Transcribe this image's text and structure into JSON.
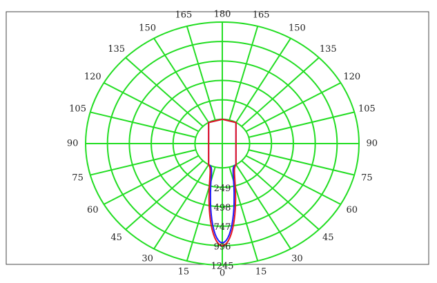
{
  "chart_data": {
    "type": "polar",
    "title": "",
    "angle_unit": "deg",
    "angle_ticks": [
      {
        "angle": 0,
        "label": "0"
      },
      {
        "angle": 15,
        "label": "15"
      },
      {
        "angle": 30,
        "label": "30"
      },
      {
        "angle": 45,
        "label": "45"
      },
      {
        "angle": 60,
        "label": "60"
      },
      {
        "angle": 75,
        "label": "75"
      },
      {
        "angle": 90,
        "label": "90"
      },
      {
        "angle": 105,
        "label": "105"
      },
      {
        "angle": 120,
        "label": "120"
      },
      {
        "angle": 135,
        "label": "135"
      },
      {
        "angle": 150,
        "label": "150"
      },
      {
        "angle": 165,
        "label": "165"
      },
      {
        "angle": 180,
        "label": "180"
      },
      {
        "angle": -165,
        "label": "165"
      },
      {
        "angle": -150,
        "label": "150"
      },
      {
        "angle": -135,
        "label": "135"
      },
      {
        "angle": -120,
        "label": "120"
      },
      {
        "angle": -105,
        "label": "105"
      },
      {
        "angle": -90,
        "label": "90"
      },
      {
        "angle": -75,
        "label": "75"
      },
      {
        "angle": -60,
        "label": "60"
      },
      {
        "angle": -45,
        "label": "45"
      },
      {
        "angle": -30,
        "label": "30"
      },
      {
        "angle": -15,
        "label": "15"
      }
    ],
    "radial_ticks": [
      {
        "value": 249,
        "label": "249"
      },
      {
        "value": 498,
        "label": "498"
      },
      {
        "value": 747,
        "label": "747"
      },
      {
        "value": 996,
        "label": "996"
      },
      {
        "value": 1245,
        "label": "1245"
      }
    ],
    "r_range": [
      0,
      1245
    ],
    "grid": true,
    "legend": "none",
    "series": [
      {
        "color": "#1a1aff",
        "points": [
          {
            "angle": 0,
            "r": 960
          },
          {
            "angle": 1,
            "r": 953
          },
          {
            "angle": 2,
            "r": 932
          },
          {
            "angle": 3,
            "r": 898
          },
          {
            "angle": 4,
            "r": 853
          },
          {
            "angle": 5,
            "r": 798
          },
          {
            "angle": 6,
            "r": 736
          },
          {
            "angle": 7,
            "r": 669
          },
          {
            "angle": 8,
            "r": 600
          },
          {
            "angle": 9,
            "r": 530
          },
          {
            "angle": 10,
            "r": 462
          },
          {
            "angle": 12,
            "r": 336
          },
          {
            "angle": 14,
            "r": 231
          },
          {
            "angle": 16,
            "r": 148
          },
          {
            "angle": 18,
            "r": 88
          },
          {
            "angle": 20,
            "r": 48
          },
          {
            "angle": 22,
            "r": 24
          },
          {
            "angle": 24,
            "r": 11
          },
          {
            "angle": 26,
            "r": 5
          },
          {
            "angle": 28,
            "r": 2
          },
          {
            "angle": 30,
            "r": 0
          },
          {
            "angle": 150,
            "r": 0
          },
          {
            "angle": 180,
            "r": 0
          },
          {
            "angle": -150,
            "r": 0
          },
          {
            "angle": -30,
            "r": 0
          },
          {
            "angle": -28,
            "r": 2
          },
          {
            "angle": -26,
            "r": 5
          },
          {
            "angle": -24,
            "r": 11
          },
          {
            "angle": -22,
            "r": 24
          },
          {
            "angle": -20,
            "r": 48
          },
          {
            "angle": -18,
            "r": 88
          },
          {
            "angle": -16,
            "r": 148
          },
          {
            "angle": -14,
            "r": 231
          },
          {
            "angle": -12,
            "r": 336
          },
          {
            "angle": -10,
            "r": 462
          },
          {
            "angle": -9,
            "r": 530
          },
          {
            "angle": -8,
            "r": 600
          },
          {
            "angle": -7,
            "r": 669
          },
          {
            "angle": -6,
            "r": 736
          },
          {
            "angle": -5,
            "r": 798
          },
          {
            "angle": -4,
            "r": 853
          },
          {
            "angle": -3,
            "r": 898
          },
          {
            "angle": -2,
            "r": 932
          },
          {
            "angle": -1,
            "r": 953
          },
          {
            "angle": 0,
            "r": 960
          }
        ]
      },
      {
        "color": "#e8141e",
        "points": [
          {
            "angle": 0,
            "r": 996
          },
          {
            "angle": 1,
            "r": 990
          },
          {
            "angle": 2,
            "r": 971
          },
          {
            "angle": 3,
            "r": 941
          },
          {
            "angle": 4,
            "r": 901
          },
          {
            "angle": 5,
            "r": 852
          },
          {
            "angle": 6,
            "r": 796
          },
          {
            "angle": 7,
            "r": 735
          },
          {
            "angle": 8,
            "r": 671
          },
          {
            "angle": 9,
            "r": 605
          },
          {
            "angle": 10,
            "r": 540
          },
          {
            "angle": 12,
            "r": 416
          },
          {
            "angle": 14,
            "r": 307
          },
          {
            "angle": 16,
            "r": 217
          },
          {
            "angle": 18,
            "r": 146
          },
          {
            "angle": 20,
            "r": 93
          },
          {
            "angle": 22,
            "r": 56
          },
          {
            "angle": 24,
            "r": 32
          },
          {
            "angle": 26,
            "r": 17
          },
          {
            "angle": 28,
            "r": 8
          },
          {
            "angle": 30,
            "r": 0
          },
          {
            "angle": 150,
            "r": 0
          },
          {
            "angle": 180,
            "r": 0
          },
          {
            "angle": -150,
            "r": 0
          },
          {
            "angle": -30,
            "r": 0
          },
          {
            "angle": -28,
            "r": 8
          },
          {
            "angle": -26,
            "r": 17
          },
          {
            "angle": -24,
            "r": 32
          },
          {
            "angle": -22,
            "r": 56
          },
          {
            "angle": -20,
            "r": 93
          },
          {
            "angle": -18,
            "r": 146
          },
          {
            "angle": -16,
            "r": 217
          },
          {
            "angle": -14,
            "r": 307
          },
          {
            "angle": -12,
            "r": 416
          },
          {
            "angle": -10,
            "r": 540
          },
          {
            "angle": -9,
            "r": 605
          },
          {
            "angle": -8,
            "r": 671
          },
          {
            "angle": -7,
            "r": 735
          },
          {
            "angle": -6,
            "r": 796
          },
          {
            "angle": -5,
            "r": 852
          },
          {
            "angle": -4,
            "r": 901
          },
          {
            "angle": -3,
            "r": 941
          },
          {
            "angle": -2,
            "r": 971
          },
          {
            "angle": -1,
            "r": 990
          },
          {
            "angle": 0,
            "r": 996
          }
        ]
      }
    ]
  },
  "colors": {
    "grid": "#22dd22",
    "frame": "#444444",
    "background": "#ffffff",
    "text": "#222222"
  }
}
